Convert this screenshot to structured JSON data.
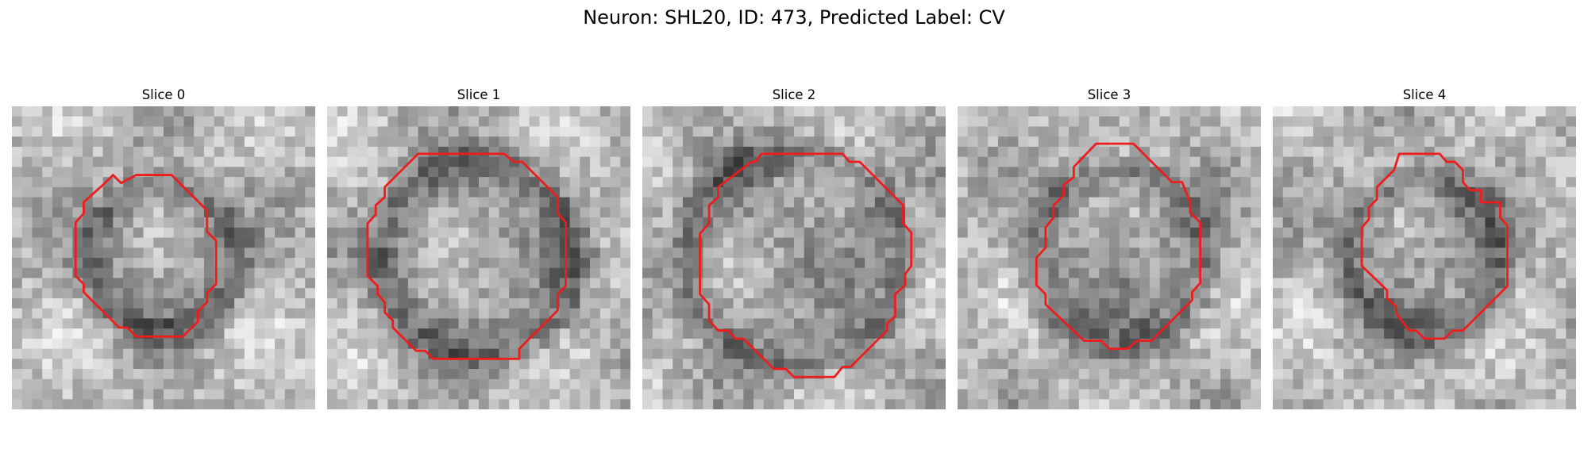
{
  "figure": {
    "title": "Neuron: SHL20, ID: 473, Predicted Label: CV"
  },
  "panels": [
    {
      "title": "Slice 0",
      "image": "grayscale microscopy patch with red ROI contour"
    },
    {
      "title": "Slice 1",
      "image": "grayscale microscopy patch with red ROI contour"
    },
    {
      "title": "Slice 2",
      "image": "grayscale microscopy patch with red ROI contour"
    },
    {
      "title": "Slice 3",
      "image": "grayscale microscopy patch with red ROI contour"
    },
    {
      "title": "Slice 4",
      "image": "grayscale microscopy patch with red ROI contour"
    }
  ],
  "colors": {
    "contour": "#ee1c1c",
    "background": "#ffffff"
  }
}
